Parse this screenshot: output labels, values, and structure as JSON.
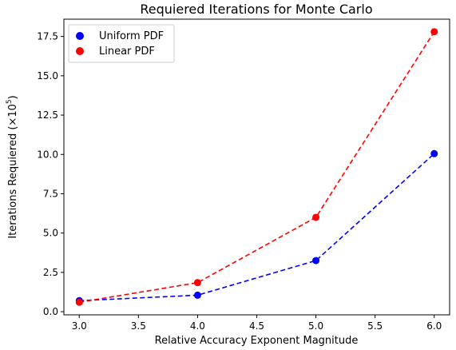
{
  "chart_data": {
    "type": "line",
    "title": "Requiered Iterations for Monte Carlo",
    "xlabel": "Relative Accuracy Exponent Magnitude",
    "ylabel_main": "Iterations Requiered (×10",
    "ylabel_exp": "5",
    "ylabel_close": ")",
    "xlim": [
      2.87,
      6.13
    ],
    "ylim": [
      -0.2,
      18.6
    ],
    "xticks": [
      3.0,
      3.5,
      4.0,
      4.5,
      5.0,
      5.5,
      6.0
    ],
    "xtick_labels": [
      "3.0",
      "3.5",
      "4.0",
      "4.5",
      "5.0",
      "5.5",
      "6.0"
    ],
    "yticks": [
      0.0,
      2.5,
      5.0,
      7.5,
      10.0,
      12.5,
      15.0,
      17.5
    ],
    "ytick_labels": [
      "0.0",
      "2.5",
      "5.0",
      "7.5",
      "10.0",
      "12.5",
      "15.0",
      "17.5"
    ],
    "grid": false,
    "legend_position": "top-left",
    "x": [
      3.0,
      4.0,
      5.0,
      6.0
    ],
    "series": [
      {
        "name": "Uniform PDF",
        "color": "#0000ff",
        "values": [
          0.7,
          1.05,
          3.25,
          10.05
        ]
      },
      {
        "name": "Linear PDF",
        "color": "#ff0000",
        "values": [
          0.6,
          1.85,
          6.0,
          17.8
        ]
      }
    ]
  }
}
